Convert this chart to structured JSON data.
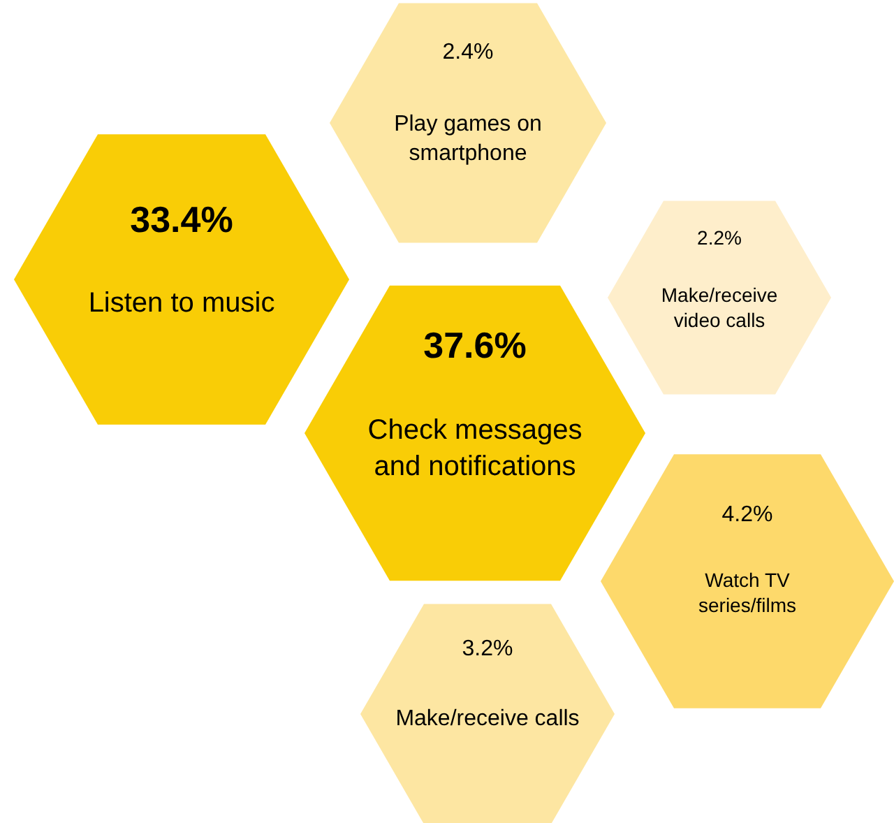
{
  "chart_data": {
    "type": "other",
    "categories": [
      "Listen to music",
      "Play games on smartphone",
      "Check messages and notifications",
      "Make/receive video calls",
      "Watch TV series/films",
      "Make/receive calls"
    ],
    "values": [
      33.4,
      2.4,
      37.6,
      2.2,
      4.2,
      3.2
    ],
    "value_labels": [
      "33.4%",
      "2.4%",
      "37.6%",
      "2.2%",
      "4.2%",
      "3.2%"
    ],
    "colors": [
      "#f9cd06",
      "#fde7a4",
      "#f9cd06",
      "#feeecb",
      "#fdd96b",
      "#fde6a2"
    ]
  }
}
